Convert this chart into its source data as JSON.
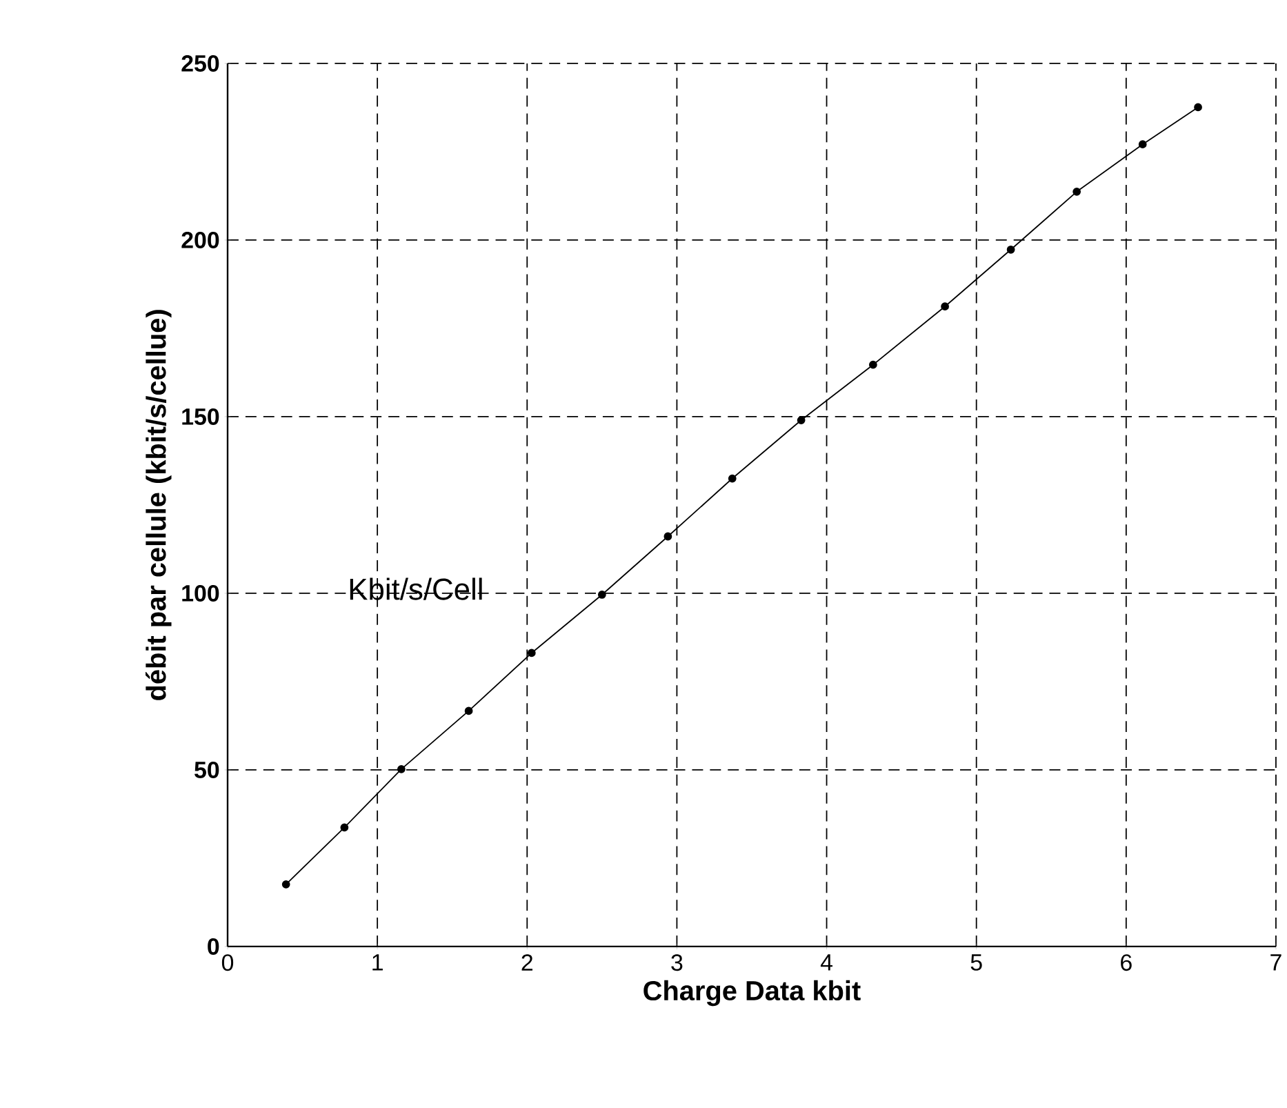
{
  "chart_data": {
    "type": "line",
    "xlabel": "Charge Data kbit",
    "ylabel": "débit par cellule (kbit/s/cellue)",
    "annotations": [
      "Kbit/s/Cell"
    ],
    "x": [
      0.39,
      0.78,
      1.16,
      1.61,
      2.03,
      2.5,
      2.94,
      3.37,
      3.83,
      4.31,
      4.79,
      5.23,
      5.67,
      6.11,
      6.48
    ],
    "series": [
      {
        "color": "#000000",
        "values": [
          17.6,
          33.7,
          50.2,
          66.7,
          83.1,
          99.6,
          116.1,
          132.5,
          149.0,
          164.7,
          181.2,
          197.3,
          213.7,
          227.1,
          237.6
        ]
      }
    ],
    "xlim": [
      0,
      7
    ],
    "ylim": [
      0,
      250
    ],
    "xticks": [
      0,
      1,
      2,
      3,
      4,
      5,
      6,
      7
    ],
    "yticks": [
      0,
      50,
      100,
      150,
      200,
      250
    ],
    "grid": true,
    "marker": "circle",
    "line_style": "solid"
  }
}
